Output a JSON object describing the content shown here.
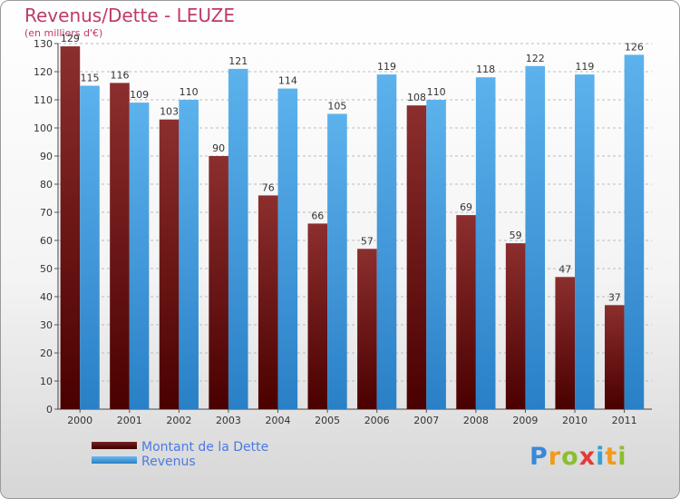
{
  "title": "Revenus/Dette - LEUZE",
  "subtitle": "(en milliers d'€)",
  "logo": {
    "letters": [
      "P",
      "r",
      "o",
      "x",
      "i",
      "t",
      "i"
    ],
    "colors": [
      "#3b88d9",
      "#f29a1d",
      "#8bbf2e",
      "#e23b3b",
      "#2ea3d8",
      "#f29a1d",
      "#8bbf2e"
    ]
  },
  "chart_data": {
    "type": "bar",
    "categories": [
      "2000",
      "2001",
      "2002",
      "2003",
      "2004",
      "2005",
      "2006",
      "2007",
      "2008",
      "2009",
      "2010",
      "2011"
    ],
    "series": [
      {
        "name": "Montant de la Dette",
        "values": [
          129,
          116,
          103,
          90,
          76,
          66,
          57,
          108,
          69,
          59,
          47,
          37
        ],
        "color": "#7a1e1e"
      },
      {
        "name": "Revenus",
        "values": [
          115,
          109,
          110,
          121,
          114,
          105,
          119,
          110,
          118,
          122,
          119,
          126
        ],
        "color": "#4aa3e6"
      }
    ],
    "ylim": [
      0,
      130
    ],
    "yticks": [
      0,
      10,
      20,
      30,
      40,
      50,
      60,
      70,
      80,
      90,
      100,
      110,
      120,
      130
    ],
    "grid": true,
    "legend_position": "bottom-left"
  }
}
